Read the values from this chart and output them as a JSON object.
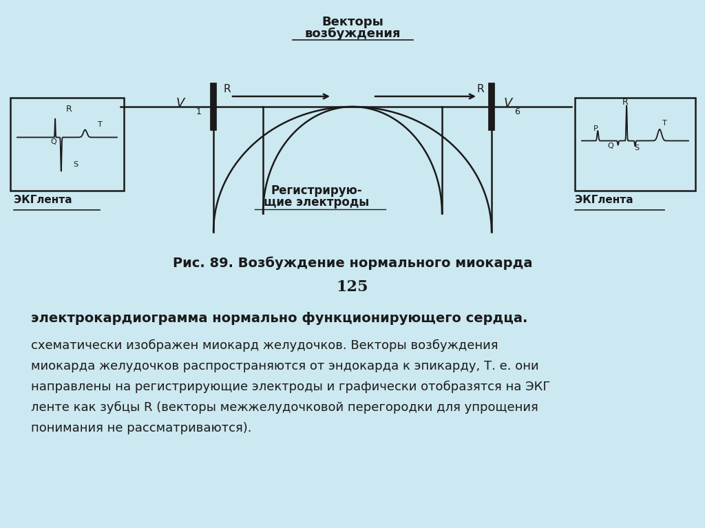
{
  "bg_color": "#cce8f0",
  "fig_width": 10.24,
  "fig_height": 7.67,
  "title_diagram": "Рис. 89. Возбуждение нормального миокарда",
  "page_number": "125",
  "bold_line": "электрокардиограмма нормально функционирующего сердца.",
  "body_text_lines": [
    "схематически изображен миокард желудочков. Векторы возбуждения",
    "миокарда желудочков распространяются от эндокарда к эпикарду, Т. е. они",
    "направлены на регистрирующие электроды и графически отобразятся на ЭКГ",
    "ленте как зубцы R (векторы межжелудочковой перегородки для упрощения",
    "понимания не рассматриваются)."
  ],
  "vectors_label_line1": "Векторы",
  "vectors_label_line2": "возбуждения",
  "electrodes_label_line1": "Регистрирую-",
  "electrodes_label_line2": "щие электроды",
  "ekg_lenta": "ЭКГлента",
  "text_color": "#1a1a1a",
  "line_color": "#1a1a1a"
}
